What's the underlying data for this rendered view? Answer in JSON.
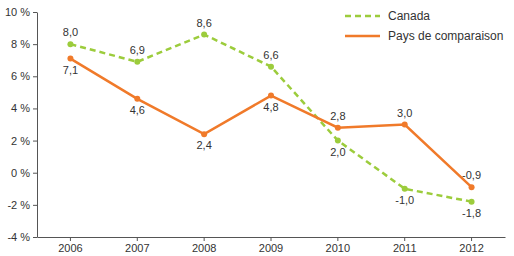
{
  "chart_data": {
    "type": "line",
    "categories": [
      "2006",
      "2007",
      "2008",
      "2009",
      "2010",
      "2011",
      "2012"
    ],
    "series": [
      {
        "name": "Canada",
        "color": "#9ccc3c",
        "line_style": "dashed",
        "marker": "circle",
        "values": [
          8.0,
          6.9,
          8.6,
          6.6,
          2.0,
          -1.0,
          -1.8
        ],
        "value_labels": [
          "8,0",
          "6,9",
          "8,6",
          "6,6",
          "2,0",
          "-1,0",
          "-1,8"
        ]
      },
      {
        "name": "Pays de comparaison",
        "color": "#f07a2a",
        "line_style": "solid",
        "marker": "circle",
        "values": [
          7.1,
          4.6,
          2.4,
          4.8,
          2.8,
          3.0,
          -0.9
        ],
        "value_labels": [
          "7,1",
          "4,6",
          "2,4",
          "4,8",
          "2,8",
          "3,0",
          "-0,9"
        ]
      }
    ],
    "ylim": [
      -4,
      10
    ],
    "yticks": [
      {
        "value": -4,
        "label": "-4 %"
      },
      {
        "value": -2,
        "label": "-2 %"
      },
      {
        "value": 0,
        "label": "0 %"
      },
      {
        "value": 2,
        "label": "2 %"
      },
      {
        "value": 4,
        "label": "4 %"
      },
      {
        "value": 6,
        "label": "6 %"
      },
      {
        "value": 8,
        "label": "8 %"
      },
      {
        "value": 10,
        "label": "10 %"
      }
    ],
    "grid": false,
    "legend": "top-right",
    "data_labels": true
  }
}
